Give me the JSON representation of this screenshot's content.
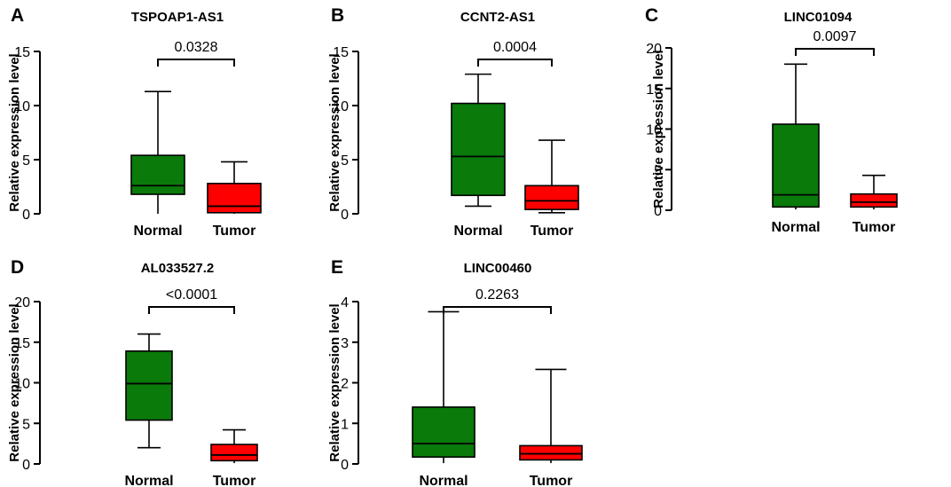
{
  "colors": {
    "normal": "#0a7a0a",
    "tumor": "#ff0000",
    "line": "#000000"
  },
  "chart_data": [
    {
      "type": "box",
      "panel": "A",
      "title": "TSPOAP1-AS1",
      "ylabel": "Relative expression level",
      "categories": [
        "Normal",
        "Tumor"
      ],
      "ylim": [
        0,
        15
      ],
      "yticks": [
        0,
        5,
        10,
        15
      ],
      "ytick_labels": [
        "0",
        "5",
        "10",
        "15"
      ],
      "boxes": [
        {
          "name": "Normal",
          "min": 0,
          "q1": 1.8,
          "median": 2.6,
          "q3": 5.4,
          "max": 11.3
        },
        {
          "name": "Tumor",
          "min": 0,
          "q1": 0.1,
          "median": 0.7,
          "q3": 2.8,
          "max": 4.8
        }
      ],
      "pvalue": "0.0328"
    },
    {
      "type": "box",
      "panel": "B",
      "title": "CCNT2-AS1",
      "ylabel": "Relative expression level",
      "categories": [
        "Normal",
        "Tumor"
      ],
      "ylim": [
        0,
        15
      ],
      "yticks": [
        0,
        5,
        10,
        15
      ],
      "ytick_labels": [
        "0",
        "5",
        "10",
        "15"
      ],
      "boxes": [
        {
          "name": "Normal",
          "min": 0.7,
          "q1": 1.7,
          "median": 5.3,
          "q3": 10.2,
          "max": 12.9
        },
        {
          "name": "Tumor",
          "min": 0.1,
          "q1": 0.4,
          "median": 1.2,
          "q3": 2.6,
          "max": 6.8
        }
      ],
      "pvalue": "0.0004"
    },
    {
      "type": "box",
      "panel": "C",
      "title": "LINC01094",
      "ylabel": "Relative expression level",
      "categories": [
        "Normal",
        "Tumor"
      ],
      "ylim": [
        0,
        20
      ],
      "yticks": [
        0,
        5,
        10,
        15,
        20
      ],
      "ytick_labels": [
        "0",
        "5",
        "10",
        "15",
        "20"
      ],
      "boxes": [
        {
          "name": "Normal",
          "min": 0.1,
          "q1": 0.4,
          "median": 1.9,
          "q3": 10.6,
          "max": 18.0
        },
        {
          "name": "Tumor",
          "min": 0.1,
          "q1": 0.4,
          "median": 1.0,
          "q3": 2.0,
          "max": 4.3
        }
      ],
      "pvalue": "0.0097"
    },
    {
      "type": "box",
      "panel": "D",
      "title": "AL033527.2",
      "ylabel": "Relative expression level",
      "categories": [
        "Normal",
        "Tumor"
      ],
      "ylim": [
        0,
        20
      ],
      "yticks": [
        0,
        5,
        10,
        15,
        20
      ],
      "ytick_labels": [
        "0",
        "5",
        "10",
        "15",
        "20"
      ],
      "boxes": [
        {
          "name": "Normal",
          "min": 2.0,
          "q1": 5.4,
          "median": 9.9,
          "q3": 13.9,
          "max": 16.0
        },
        {
          "name": "Tumor",
          "min": 0.1,
          "q1": 0.4,
          "median": 1.1,
          "q3": 2.4,
          "max": 4.2
        }
      ],
      "pvalue": "<0.0001"
    },
    {
      "type": "box",
      "panel": "E",
      "title": "LINC00460",
      "ylabel": "Relative expression level",
      "categories": [
        "Normal",
        "Tumor"
      ],
      "ylim": [
        0,
        4
      ],
      "yticks": [
        0,
        1,
        2,
        3,
        4
      ],
      "ytick_labels": [
        "0",
        "1",
        "2",
        "3",
        "4"
      ],
      "boxes": [
        {
          "name": "Normal",
          "min": 0.02,
          "q1": 0.17,
          "median": 0.5,
          "q3": 1.4,
          "max": 3.75
        },
        {
          "name": "Tumor",
          "min": 0.02,
          "q1": 0.1,
          "median": 0.25,
          "q3": 0.45,
          "max": 2.33
        }
      ],
      "pvalue": "0.2263"
    }
  ]
}
